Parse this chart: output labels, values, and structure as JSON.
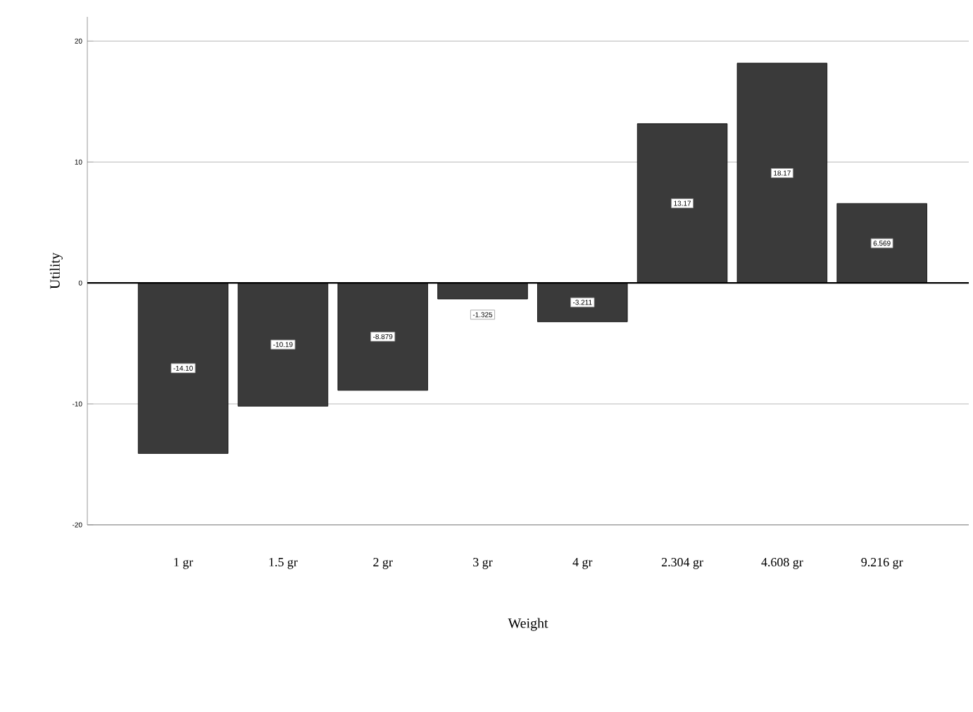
{
  "chart_data": {
    "type": "bar",
    "xlabel": "Weight",
    "ylabel": "Utility",
    "categories": [
      "1 gr",
      "1.5 gr",
      "2 gr",
      "3 gr",
      "4 gr",
      "2.304 gr",
      "4.608 gr",
      "9.216 gr"
    ],
    "values": [
      -14.1,
      -10.19,
      -8.879,
      -1.325,
      -3.211,
      13.17,
      18.17,
      6.569
    ],
    "value_labels": [
      "-14.10",
      "-10.19",
      "-8.879",
      "-1.325",
      "-3.211",
      "13.17",
      "18.17",
      "6.569"
    ],
    "color": "#3a3a3a",
    "ylim": [
      -20,
      22
    ],
    "yticks": [
      -20,
      -10,
      0,
      10,
      20
    ],
    "grid": "y"
  }
}
